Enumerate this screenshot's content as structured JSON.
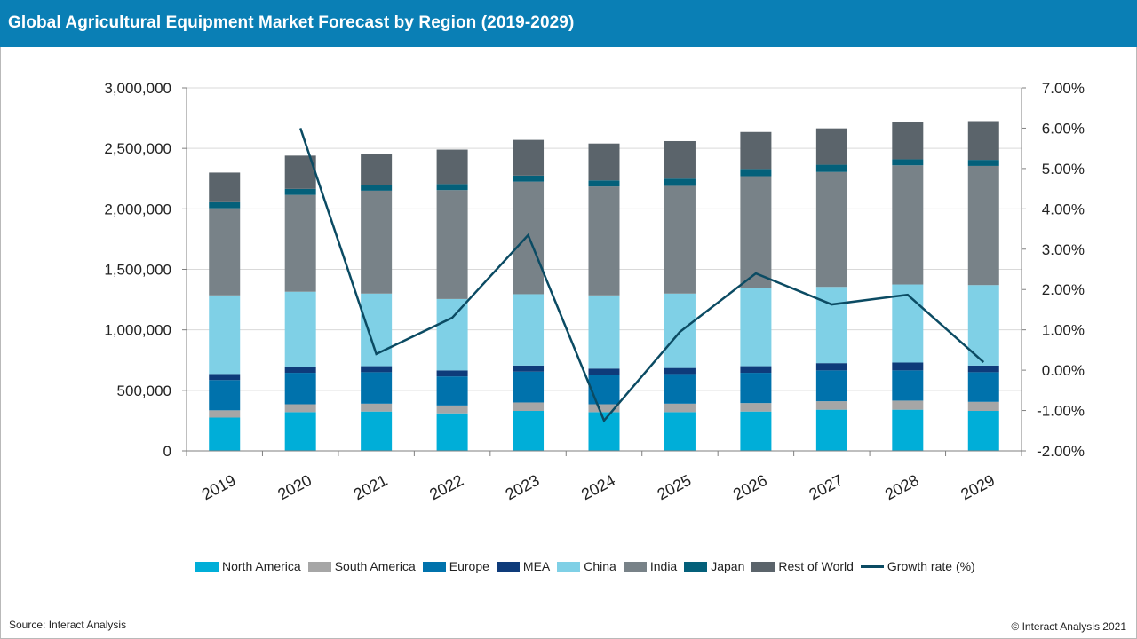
{
  "header": {
    "title": "Global Agricultural Equipment Market Forecast by Region (2019-2029)"
  },
  "footer": {
    "source": "Source: Interact Analysis",
    "copyright": "© Interact Analysis 2021"
  },
  "colors": {
    "header_bg": "#0a7fb5",
    "grid": "#d9d9d9",
    "axis": "#7f7f7f"
  },
  "chart_data": {
    "type": "bar",
    "stacked": true,
    "title": "Global Agricultural Equipment Market Forecast by Region (2019-2029)",
    "categories": [
      "2019",
      "2020",
      "2021",
      "2022",
      "2023",
      "2024",
      "2025",
      "2026",
      "2027",
      "2028",
      "2029"
    ],
    "y_left": {
      "min": 0,
      "max": 3000000,
      "ticks": [
        "0",
        "500,000",
        "1,000,000",
        "1,500,000",
        "2,000,000",
        "2,500,000",
        "3,000,000"
      ]
    },
    "y_right": {
      "min": -2,
      "max": 7,
      "ticks": [
        "-2.00%",
        "-1.00%",
        "0.00%",
        "1.00%",
        "2.00%",
        "3.00%",
        "4.00%",
        "5.00%",
        "6.00%",
        "7.00%"
      ]
    },
    "grid": true,
    "legend_position": "bottom",
    "series": [
      {
        "name": "North America",
        "color": "#00aed8",
        "values": [
          275000,
          320000,
          325000,
          310000,
          330000,
          320000,
          320000,
          325000,
          340000,
          340000,
          330000
        ]
      },
      {
        "name": "South America",
        "color": "#a6a6a6",
        "values": [
          60000,
          65000,
          65000,
          65000,
          70000,
          65000,
          70000,
          70000,
          70000,
          75000,
          75000
        ]
      },
      {
        "name": "Europe",
        "color": "#0072ac",
        "values": [
          250000,
          260000,
          260000,
          240000,
          255000,
          245000,
          245000,
          250000,
          255000,
          250000,
          245000
        ]
      },
      {
        "name": "MEA",
        "color": "#0e3b7a",
        "values": [
          50000,
          50000,
          50000,
          50000,
          50000,
          50000,
          50000,
          55000,
          60000,
          65000,
          55000
        ]
      },
      {
        "name": "China",
        "color": "#7fd0e6",
        "values": [
          650000,
          620000,
          600000,
          590000,
          590000,
          605000,
          615000,
          645000,
          630000,
          645000,
          665000
        ]
      },
      {
        "name": "India",
        "color": "#788288",
        "values": [
          720000,
          800000,
          850000,
          900000,
          930000,
          900000,
          890000,
          925000,
          950000,
          985000,
          985000
        ]
      },
      {
        "name": "Japan",
        "color": "#04607a",
        "values": [
          50000,
          50000,
          50000,
          50000,
          50000,
          50000,
          60000,
          60000,
          60000,
          50000,
          50000
        ]
      },
      {
        "name": "Rest of World",
        "color": "#5b646b",
        "values": [
          245000,
          275000,
          255000,
          285000,
          295000,
          305000,
          310000,
          305000,
          300000,
          305000,
          320000
        ]
      }
    ],
    "line_series": {
      "name": "Growth rate (%)",
      "color": "#0b4b63",
      "axis": "right",
      "x": [
        "2020",
        "2021",
        "2022",
        "2023",
        "2024",
        "2025",
        "2026",
        "2027",
        "2028",
        "2029"
      ],
      "values": [
        6.0,
        0.4,
        1.3,
        3.35,
        -1.25,
        0.95,
        2.4,
        1.63,
        1.87,
        0.2
      ]
    }
  }
}
